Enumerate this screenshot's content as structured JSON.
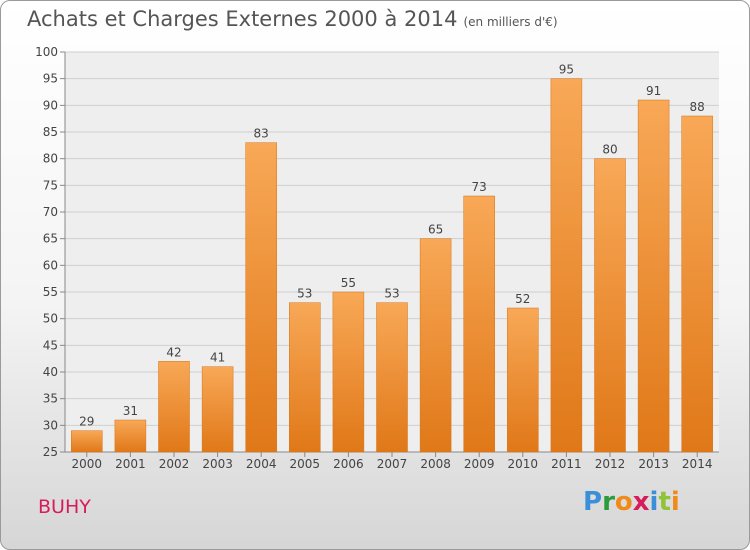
{
  "chart_data": {
    "type": "bar",
    "title": "Achats et Charges Externes 2000 à 2014",
    "subtitle": "(en milliers d'€)",
    "categories": [
      "2000",
      "2001",
      "2002",
      "2003",
      "2004",
      "2005",
      "2006",
      "2007",
      "2008",
      "2009",
      "2010",
      "2011",
      "2012",
      "2013",
      "2014"
    ],
    "values": [
      29,
      31,
      42,
      41,
      83,
      53,
      55,
      53,
      65,
      73,
      52,
      95,
      80,
      91,
      88
    ],
    "ylim": [
      25,
      100
    ],
    "yticks": [
      25,
      30,
      35,
      40,
      45,
      50,
      55,
      60,
      65,
      70,
      75,
      80,
      85,
      90,
      95,
      100
    ],
    "grid": true,
    "bar_color": "#f0912f",
    "xlabel": "",
    "ylabel": ""
  },
  "footer": {
    "commune": "BUHY",
    "brand": [
      "P",
      "r",
      "o",
      "x",
      "i",
      "t",
      "i"
    ]
  }
}
